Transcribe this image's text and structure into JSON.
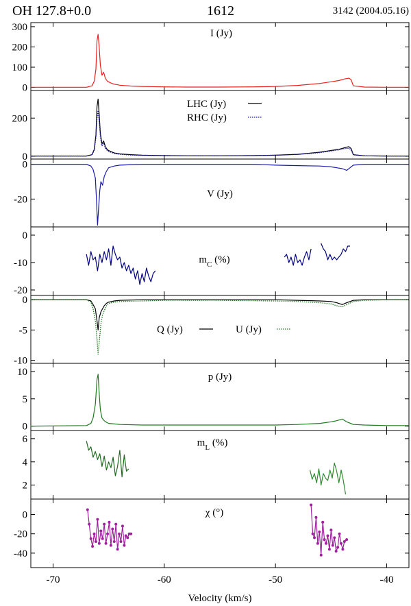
{
  "header": {
    "source": "OH 127.8+0.0",
    "frequency": "1612",
    "observation": "3142 (2004.05.16)"
  },
  "chart_data": {
    "type": "line",
    "x_axis": {
      "label": "Velocity (km/s)",
      "range": [
        -72,
        -38
      ],
      "ticks": [
        -70,
        -60,
        -50,
        -40
      ]
    },
    "panels": [
      {
        "id": "I",
        "label": "I (Jy)",
        "ylim": [
          -15,
          320
        ],
        "yticks": [
          0,
          100,
          200,
          300
        ],
        "series": [
          {
            "name": "I",
            "color": "#e8201c",
            "style": "solid",
            "x": [
              -72,
              -67,
              -66.5,
              -66.3,
              -66.15,
              -66.05,
              -65.95,
              -65.85,
              -65.75,
              -65.6,
              -65.45,
              -65.3,
              -65.1,
              -64.8,
              -64.5,
              -64,
              -63,
              -62,
              -60,
              -58,
              -55,
              -52,
              -50,
              -48,
              -46,
              -45,
              -44.3,
              -43.8,
              -43.4,
              -43.2,
              -43,
              -42,
              -40,
              -38
            ],
            "y": [
              1,
              1,
              8,
              30,
              90,
              230,
              262,
              200,
              110,
              60,
              75,
              45,
              30,
              22,
              16,
              11,
              7,
              5,
              3,
              2,
              2,
              3,
              5,
              10,
              20,
              28,
              34,
              42,
              46,
              38,
              8,
              2,
              1,
              1
            ]
          }
        ]
      },
      {
        "id": "LHC_RHC",
        "label": "",
        "ylim": [
          -15,
          345
        ],
        "yticks": [
          0,
          200
        ],
        "legend": [
          {
            "label": "LHC (Jy)",
            "style": "solid",
            "color": "#000000"
          },
          {
            "label": "RHC (Jy)",
            "style": "dotted",
            "color": "#1a1aa8"
          }
        ],
        "series": [
          {
            "name": "LHC",
            "color": "#000000",
            "style": "solid",
            "x": [
              -72,
              -67,
              -66.5,
              -66.3,
              -66.15,
              -66.05,
              -65.95,
              -65.85,
              -65.75,
              -65.6,
              -65.45,
              -65.3,
              -65.1,
              -64.8,
              -64.5,
              -64,
              -63,
              -62,
              -60,
              -58,
              -55,
              -52,
              -50,
              -48,
              -46,
              -45,
              -44.3,
              -43.8,
              -43.4,
              -43.2,
              -43,
              -42,
              -40,
              -38
            ],
            "y": [
              1,
              1,
              8,
              35,
              110,
              260,
              300,
              220,
              120,
              65,
              80,
              50,
              33,
              24,
              17,
              12,
              8,
              5,
              3,
              2,
              2,
              3,
              5,
              10,
              21,
              30,
              36,
              44,
              50,
              40,
              8,
              2,
              1,
              1
            ]
          },
          {
            "name": "RHC",
            "color": "#1a1aa8",
            "style": "dotted",
            "x": [
              -72,
              -67,
              -66.5,
              -66.3,
              -66.15,
              -66.05,
              -65.95,
              -65.85,
              -65.75,
              -65.6,
              -65.45,
              -65.3,
              -65.1,
              -64.8,
              -64.5,
              -64,
              -63,
              -62,
              -60,
              -58,
              -55,
              -52,
              -50,
              -48,
              -46,
              -45,
              -44.3,
              -43.8,
              -43.4,
              -43.2,
              -43,
              -42,
              -40,
              -38
            ],
            "y": [
              1,
              1,
              7,
              30,
              95,
              200,
              240,
              185,
              100,
              55,
              68,
              42,
              28,
              20,
              14,
              10,
              6,
              4,
              3,
              2,
              2,
              3,
              5,
              9,
              19,
              27,
              33,
              40,
              42,
              34,
              7,
              2,
              1,
              1
            ]
          }
        ]
      },
      {
        "id": "V",
        "label": "V (Jy)",
        "ylim": [
          -36,
          3
        ],
        "yticks": [
          0,
          -20
        ],
        "series": [
          {
            "name": "V",
            "color": "#1a1aa8",
            "style": "solid",
            "x": [
              -72,
              -67,
              -66.6,
              -66.4,
              -66.2,
              -66.1,
              -66,
              -65.9,
              -65.8,
              -65.7,
              -65.55,
              -65.4,
              -65.2,
              -65,
              -64.5,
              -64,
              -62,
              -60,
              -55,
              -52,
              -50,
              -48,
              -46,
              -45,
              -44.5,
              -44,
              -43.6,
              -43.3,
              -43,
              -42,
              -40,
              -38
            ],
            "y": [
              0,
              0,
              -1,
              -3,
              -8,
              -20,
              -35,
              -25,
              -15,
              -10,
              -12,
              -7,
              -4,
              -2,
              -1,
              -0.5,
              0,
              0,
              0,
              0,
              -0.5,
              -0.8,
              -1,
              -1.5,
              -2,
              -2.5,
              -3.5,
              -2,
              -0.5,
              0,
              0,
              0
            ]
          }
        ]
      },
      {
        "id": "mC",
        "label": "mC (%)",
        "ylim": [
          -22,
          3
        ],
        "yticks": [
          0,
          -10,
          -20
        ],
        "series": [
          {
            "name": "mC",
            "color": "#000080",
            "style": "solid",
            "x": [
              -67,
              -66.8,
              -66.6,
              -66.4,
              -66.2,
              -66,
              -65.8,
              -65.6,
              -65.4,
              -65.2,
              -65,
              -64.8,
              -64.6,
              -64.4,
              -64.2,
              -64,
              -63.8,
              -63.6,
              -63.4,
              -63.2,
              -63,
              -62.8,
              -62.6,
              -62.4,
              -62.2,
              -62,
              -61.8,
              -61.6,
              -61.4,
              -61.2,
              -61,
              -60.8
            ],
            "y": [
              -7,
              -11,
              -6,
              -9,
              -8,
              -13,
              -7,
              -10,
              -6,
              -9,
              -5,
              -11,
              -4,
              -7,
              -9,
              -8,
              -12,
              -10,
              -13,
              -11,
              -14,
              -12,
              -16,
              -13,
              -18,
              -14,
              -17,
              -12,
              -15,
              -17,
              -14,
              -13
            ]
          },
          {
            "name": "mC",
            "color": "#000080",
            "style": "solid",
            "x": [
              -49.2,
              -49,
              -48.8,
              -48.6,
              -48.4,
              -48.2,
              -48,
              -47.8,
              -47.6,
              -47.4,
              -47.2,
              -47,
              -46.8
            ],
            "y": [
              -8,
              -7,
              -10,
              -8,
              -11,
              -7,
              -10,
              -9,
              -11,
              -8,
              -6,
              -9,
              -5
            ]
          },
          {
            "name": "mC",
            "color": "#000080",
            "style": "solid",
            "x": [
              -45.9,
              -45.7,
              -45.5,
              -45.3,
              -45.1,
              -44.9,
              -44.7,
              -44.5,
              -44.3,
              -44.1,
              -43.9,
              -43.7,
              -43.5,
              -43.3
            ],
            "y": [
              -3,
              -5,
              -6,
              -9,
              -7,
              -9,
              -8,
              -9,
              -8,
              -7,
              -5,
              -6,
              -4,
              -4
            ]
          }
        ]
      },
      {
        "id": "QU",
        "label": "",
        "ylim": [
          -10.5,
          0.7
        ],
        "yticks": [
          0,
          -5,
          -10
        ],
        "legend": [
          {
            "label": "Q (Jy)",
            "style": "solid",
            "color": "#000000"
          },
          {
            "label": "U (Jy)",
            "style": "dotted",
            "color": "#1e7a1e"
          }
        ],
        "series": [
          {
            "name": "Q",
            "color": "#000000",
            "style": "solid",
            "x": [
              -72,
              -67,
              -66.6,
              -66.4,
              -66.2,
              -66.05,
              -65.95,
              -65.85,
              -65.7,
              -65.55,
              -65.4,
              -65.2,
              -65,
              -64.5,
              -64,
              -62,
              -60,
              -55,
              -50,
              -48,
              -46,
              -45,
              -44.5,
              -44,
              -43.6,
              -43,
              -42,
              -40,
              -38
            ],
            "y": [
              0,
              0,
              -0.2,
              -0.8,
              -1.5,
              -3.5,
              -5,
              -3,
              -2,
              -1.5,
              -1,
              -0.6,
              -0.4,
              -0.2,
              -0.1,
              0,
              0,
              0,
              0,
              -0.1,
              -0.2,
              -0.3,
              -0.5,
              -0.8,
              -0.5,
              -0.1,
              0,
              0,
              0
            ]
          },
          {
            "name": "U",
            "color": "#1e7a1e",
            "style": "dotted",
            "x": [
              -72,
              -67,
              -66.6,
              -66.4,
              -66.2,
              -66.05,
              -65.95,
              -65.85,
              -65.7,
              -65.55,
              -65.4,
              -65.2,
              -65,
              -64.5,
              -64,
              -62,
              -60,
              -55,
              -50,
              -48,
              -46,
              -45,
              -44.5,
              -44,
              -43.6,
              -43,
              -42,
              -40,
              -38
            ],
            "y": [
              0,
              0,
              -0.4,
              -1.5,
              -3.5,
              -6.5,
              -9,
              -7,
              -4,
              -2.5,
              -1.8,
              -1,
              -0.6,
              -0.4,
              -0.3,
              -0.2,
              -0.1,
              -0.1,
              -0.2,
              -0.3,
              -0.5,
              -0.7,
              -1,
              -1.2,
              -0.8,
              -0.3,
              -0.1,
              0,
              0
            ]
          }
        ]
      },
      {
        "id": "p",
        "label": "p (Jy)",
        "ylim": [
          -0.8,
          11.5
        ],
        "yticks": [
          0,
          5,
          10
        ],
        "series": [
          {
            "name": "p",
            "color": "#1e7a1e",
            "style": "solid",
            "x": [
              -72,
              -67,
              -66.6,
              -66.4,
              -66.2,
              -66.05,
              -65.95,
              -65.85,
              -65.75,
              -65.6,
              -65.4,
              -65.2,
              -65,
              -64.5,
              -64,
              -62,
              -60,
              -55,
              -50,
              -48,
              -46,
              -45,
              -44.5,
              -44,
              -43.6,
              -43,
              -42,
              -40,
              -38
            ],
            "y": [
              0,
              0.1,
              0.5,
              1.5,
              4,
              8.5,
              9.5,
              6,
              3,
              1.5,
              1,
              0.7,
              0.5,
              0.4,
              0.3,
              0.2,
              0.2,
              0.2,
              0.2,
              0.3,
              0.5,
              0.8,
              1,
              1.3,
              0.8,
              0.3,
              0.2,
              0.1,
              0.1
            ]
          }
        ]
      },
      {
        "id": "mL",
        "label": "mL (%)",
        "ylim": [
          0.8,
          6.7
        ],
        "yticks": [
          2,
          4,
          6
        ],
        "series": [
          {
            "name": "mL",
            "color": "#1e6a1e",
            "style": "solid",
            "x": [
              -67,
              -66.8,
              -66.6,
              -66.4,
              -66.2,
              -66,
              -65.8,
              -65.6,
              -65.4,
              -65.2,
              -65,
              -64.8,
              -64.6,
              -64.4,
              -64.2,
              -64,
              -63.8,
              -63.6,
              -63.4,
              -63.2
            ],
            "y": [
              5.8,
              5,
              5.3,
              4.4,
              4.9,
              4.2,
              4.7,
              3.6,
              4.5,
              3.3,
              4,
              3.5,
              4.4,
              2.8,
              3.6,
              5,
              2.7,
              4.6,
              3.2,
              3.4
            ]
          },
          {
            "name": "mL",
            "color": "#2e8a2e",
            "style": "solid",
            "x": [
              -46.9,
              -46.7,
              -46.5,
              -46.3,
              -46.1,
              -45.9,
              -45.7,
              -45.5,
              -45.3,
              -45.1,
              -44.9,
              -44.7,
              -44.5,
              -44.3,
              -44.1,
              -43.9,
              -43.7
            ],
            "y": [
              3.3,
              2.5,
              3,
              2.2,
              3.4,
              2,
              3,
              2.6,
              2.4,
              3.3,
              2.6,
              3.9,
              3.2,
              2.2,
              3.3,
              2.4,
              1.2
            ]
          }
        ]
      },
      {
        "id": "chi",
        "label": "χ (°)",
        "ylim": [
          -55,
          16
        ],
        "yticks": [
          0,
          -20,
          -40
        ],
        "series": [
          {
            "name": "chi",
            "color": "#a020a0",
            "style": "solid",
            "markers": true,
            "x": [
              -66.9,
              -66.75,
              -66.6,
              -66.45,
              -66.3,
              -66.15,
              -66,
              -65.85,
              -65.7,
              -65.55,
              -65.4,
              -65.25,
              -65.1,
              -64.95,
              -64.8,
              -64.65,
              -64.5,
              -64.35,
              -64.2,
              -64.05,
              -63.9,
              -63.75,
              -63.6,
              -63.45,
              -63.3,
              -63.15,
              -63
            ],
            "y": [
              5,
              -10,
              -25,
              -33,
              -20,
              -28,
              -5,
              -30,
              -17,
              -25,
              -10,
              -30,
              -20,
              -8,
              -32,
              -15,
              -28,
              -10,
              -36,
              -20,
              -28,
              -12,
              -32,
              -22,
              -24,
              -20,
              -20
            ]
          },
          {
            "name": "chi",
            "color": "#a020a0",
            "style": "solid",
            "markers": true,
            "x": [
              -46.8,
              -46.65,
              -46.5,
              -46.35,
              -46.2,
              -46.05,
              -45.9,
              -45.75,
              -45.6,
              -45.45,
              -45.3,
              -45.15,
              -45,
              -44.85,
              -44.7,
              -44.55,
              -44.4,
              -44.25,
              -44.1,
              -43.95,
              -43.8,
              -43.6
            ],
            "y": [
              10,
              -20,
              -24,
              -3,
              -30,
              -18,
              -42,
              -8,
              -26,
              -30,
              -22,
              -36,
              -16,
              -32,
              -24,
              -38,
              -34,
              -20,
              -30,
              -36,
              -28,
              -26
            ]
          }
        ]
      }
    ]
  }
}
